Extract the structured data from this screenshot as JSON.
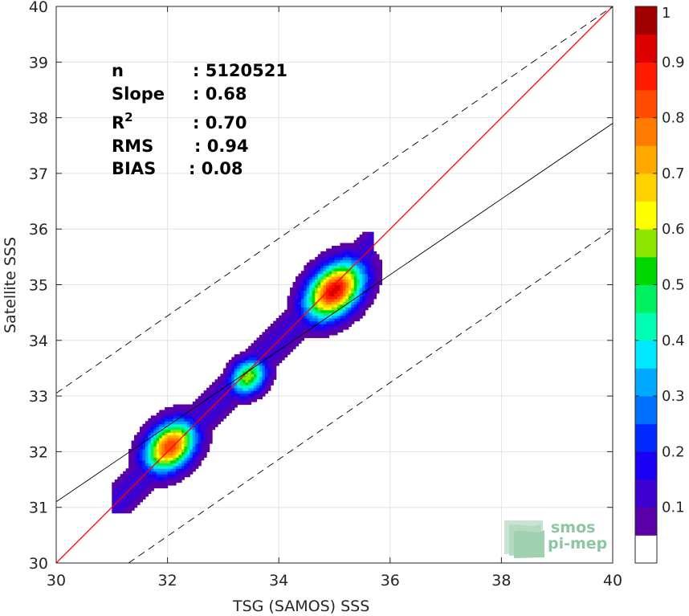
{
  "chart_data": {
    "type": "heatmap",
    "subtype": "density-contour-scatter",
    "xlabel": "TSG (SAMOS) SSS",
    "ylabel": "Satellite SSS",
    "xlim": [
      30,
      40
    ],
    "ylim": [
      30,
      40
    ],
    "xticks": [
      30,
      32,
      34,
      36,
      38,
      40
    ],
    "yticks": [
      30,
      31,
      32,
      33,
      34,
      35,
      36,
      37,
      38,
      39,
      40
    ],
    "grid": true,
    "stats": [
      {
        "label": "n",
        "value": ": 5120521"
      },
      {
        "label": "Slope",
        "value": ": 0.68"
      },
      {
        "label": "R",
        "sup": "2",
        "value": ": 0.70"
      },
      {
        "label": "RMS",
        "value": ": 0.94"
      },
      {
        "label": "BIAS",
        "value": ": 0.08"
      }
    ],
    "lines": {
      "identity": {
        "slope": 1,
        "intercept": 0,
        "color": "#ff0000"
      },
      "regression": {
        "slope": 0.68,
        "points": [
          [
            30,
            31.1
          ],
          [
            40,
            37.9
          ]
        ],
        "color": "#000000"
      },
      "offset_upper": {
        "points": [
          [
            30,
            33.05
          ],
          [
            40,
            40
          ]
        ],
        "style": "dashed"
      },
      "offset_lower": {
        "points": [
          [
            31.3,
            30
          ],
          [
            40,
            36
          ]
        ],
        "style": "dashed"
      }
    },
    "density_clusters": [
      {
        "center": [
          35.0,
          34.9
        ],
        "peak": 0.93
      },
      {
        "center": [
          33.45,
          33.35
        ],
        "peak": 0.58
      },
      {
        "center": [
          32.05,
          32.1
        ],
        "peak": 0.85
      }
    ],
    "colorbar": {
      "min": 0,
      "max": 1,
      "ticks": [
        0.1,
        0.2,
        0.3,
        0.4,
        0.5,
        0.6,
        0.7,
        0.8,
        0.9,
        1
      ],
      "tick_labels": [
        "0.1",
        "0.2",
        "0.3",
        "0.4",
        "0.5",
        "0.6",
        "0.7",
        "0.8",
        "0.9",
        "1"
      ],
      "levels": [
        {
          "from": 0.0,
          "to": 0.05,
          "color": "#ffffff"
        },
        {
          "from": 0.05,
          "to": 0.1,
          "color": "#5a00a8"
        },
        {
          "from": 0.1,
          "to": 0.15,
          "color": "#3c00d0"
        },
        {
          "from": 0.15,
          "to": 0.2,
          "color": "#1a00f5"
        },
        {
          "from": 0.2,
          "to": 0.25,
          "color": "#0028ff"
        },
        {
          "from": 0.25,
          "to": 0.3,
          "color": "#0070ff"
        },
        {
          "from": 0.3,
          "to": 0.35,
          "color": "#00a8ff"
        },
        {
          "from": 0.35,
          "to": 0.4,
          "color": "#00e8ff"
        },
        {
          "from": 0.4,
          "to": 0.45,
          "color": "#00ffb4"
        },
        {
          "from": 0.45,
          "to": 0.5,
          "color": "#00f060"
        },
        {
          "from": 0.5,
          "to": 0.55,
          "color": "#00d600"
        },
        {
          "from": 0.55,
          "to": 0.6,
          "color": "#8ce600"
        },
        {
          "from": 0.6,
          "to": 0.65,
          "color": "#ffff00"
        },
        {
          "from": 0.65,
          "to": 0.7,
          "color": "#ffd200"
        },
        {
          "from": 0.7,
          "to": 0.75,
          "color": "#ffa800"
        },
        {
          "from": 0.75,
          "to": 0.8,
          "color": "#ff7a00"
        },
        {
          "from": 0.8,
          "to": 0.85,
          "color": "#ff4a00"
        },
        {
          "from": 0.85,
          "to": 0.9,
          "color": "#ff1a00"
        },
        {
          "from": 0.9,
          "to": 0.95,
          "color": "#dd0000"
        },
        {
          "from": 0.95,
          "to": 1.0,
          "color": "#a00000"
        }
      ]
    }
  },
  "logo": {
    "line1": "smos",
    "line2": "pi-mep"
  }
}
